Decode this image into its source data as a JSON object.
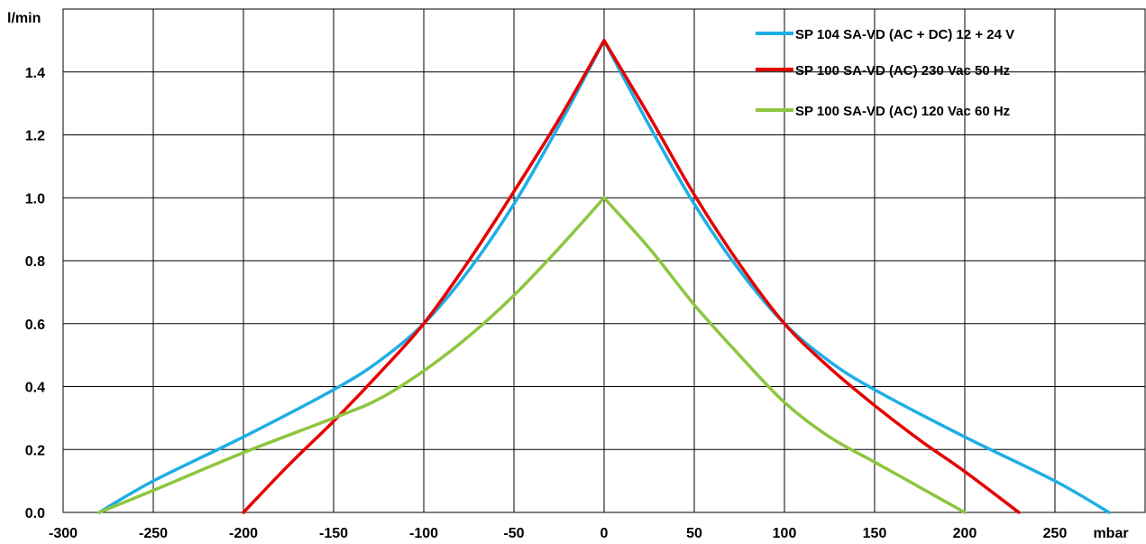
{
  "chart_data": {
    "type": "line",
    "title": "",
    "ylabel": "l/min",
    "xlabel": "mbar",
    "xlim": [
      -300,
      300
    ],
    "ylim": [
      0,
      1.6
    ],
    "xticks": [
      -300,
      -250,
      -200,
      -150,
      -100,
      -50,
      0,
      50,
      100,
      150,
      200,
      250
    ],
    "yticks": [
      0.0,
      0.2,
      0.4,
      0.6,
      0.8,
      1.0,
      1.2,
      1.4
    ],
    "ytick_labels": [
      "0.0",
      "0.2",
      "0.4",
      "0.6",
      "0.8",
      "1.0",
      "1.2",
      "1.4"
    ],
    "grid": true,
    "legend_position": "top-right",
    "series": [
      {
        "name": "SP 104 SA-VD (AC + DC) 12 + 24 V",
        "color": "#1eaee6",
        "x": [
          -280,
          -250,
          -200,
          -150,
          -125,
          -100,
          -75,
          -50,
          -25,
          0,
          25,
          50,
          75,
          100,
          125,
          150,
          200,
          250,
          280
        ],
        "y": [
          0.0,
          0.1,
          0.24,
          0.39,
          0.48,
          0.6,
          0.77,
          0.98,
          1.23,
          1.5,
          1.23,
          0.98,
          0.77,
          0.6,
          0.48,
          0.39,
          0.24,
          0.1,
          0.0
        ]
      },
      {
        "name": "SP 100 SA-VD (AC) 230 Vac 50 Hz",
        "color": "#e60000",
        "x": [
          -200,
          -175,
          -150,
          -125,
          -100,
          -75,
          -50,
          -25,
          0,
          25,
          50,
          75,
          100,
          125,
          150,
          175,
          200,
          230
        ],
        "y": [
          0.0,
          0.15,
          0.29,
          0.44,
          0.6,
          0.8,
          1.02,
          1.25,
          1.5,
          1.26,
          1.01,
          0.79,
          0.6,
          0.46,
          0.34,
          0.23,
          0.13,
          0.0
        ]
      },
      {
        "name": "SP 100 SA-VD (AC) 120 Vac 60 Hz",
        "color": "#8dc63f",
        "x": [
          -280,
          -250,
          -200,
          -150,
          -125,
          -100,
          -75,
          -50,
          -25,
          0,
          25,
          50,
          75,
          100,
          125,
          150,
          175,
          200
        ],
        "y": [
          0.0,
          0.07,
          0.19,
          0.3,
          0.36,
          0.45,
          0.56,
          0.69,
          0.84,
          1.0,
          0.84,
          0.66,
          0.5,
          0.35,
          0.24,
          0.16,
          0.08,
          0.0
        ]
      }
    ]
  }
}
